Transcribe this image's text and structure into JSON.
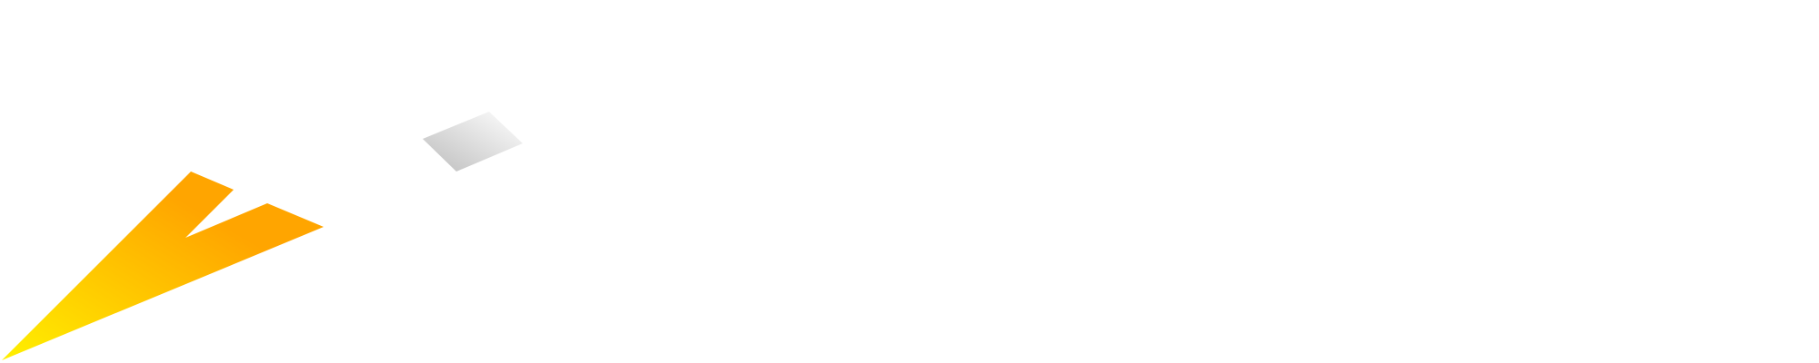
{
  "graphic": {
    "mark_icon": "lightning-bolt-logo-mark",
    "accent_icon": "gray-parallelogram-accent",
    "colors": {
      "background": "#ffffff",
      "bolt_gradient_start": "#fff000",
      "bolt_gradient_end": "#ffa500",
      "accent_gradient_start": "#bdbdbd",
      "accent_gradient_end": "#ffffff"
    }
  }
}
